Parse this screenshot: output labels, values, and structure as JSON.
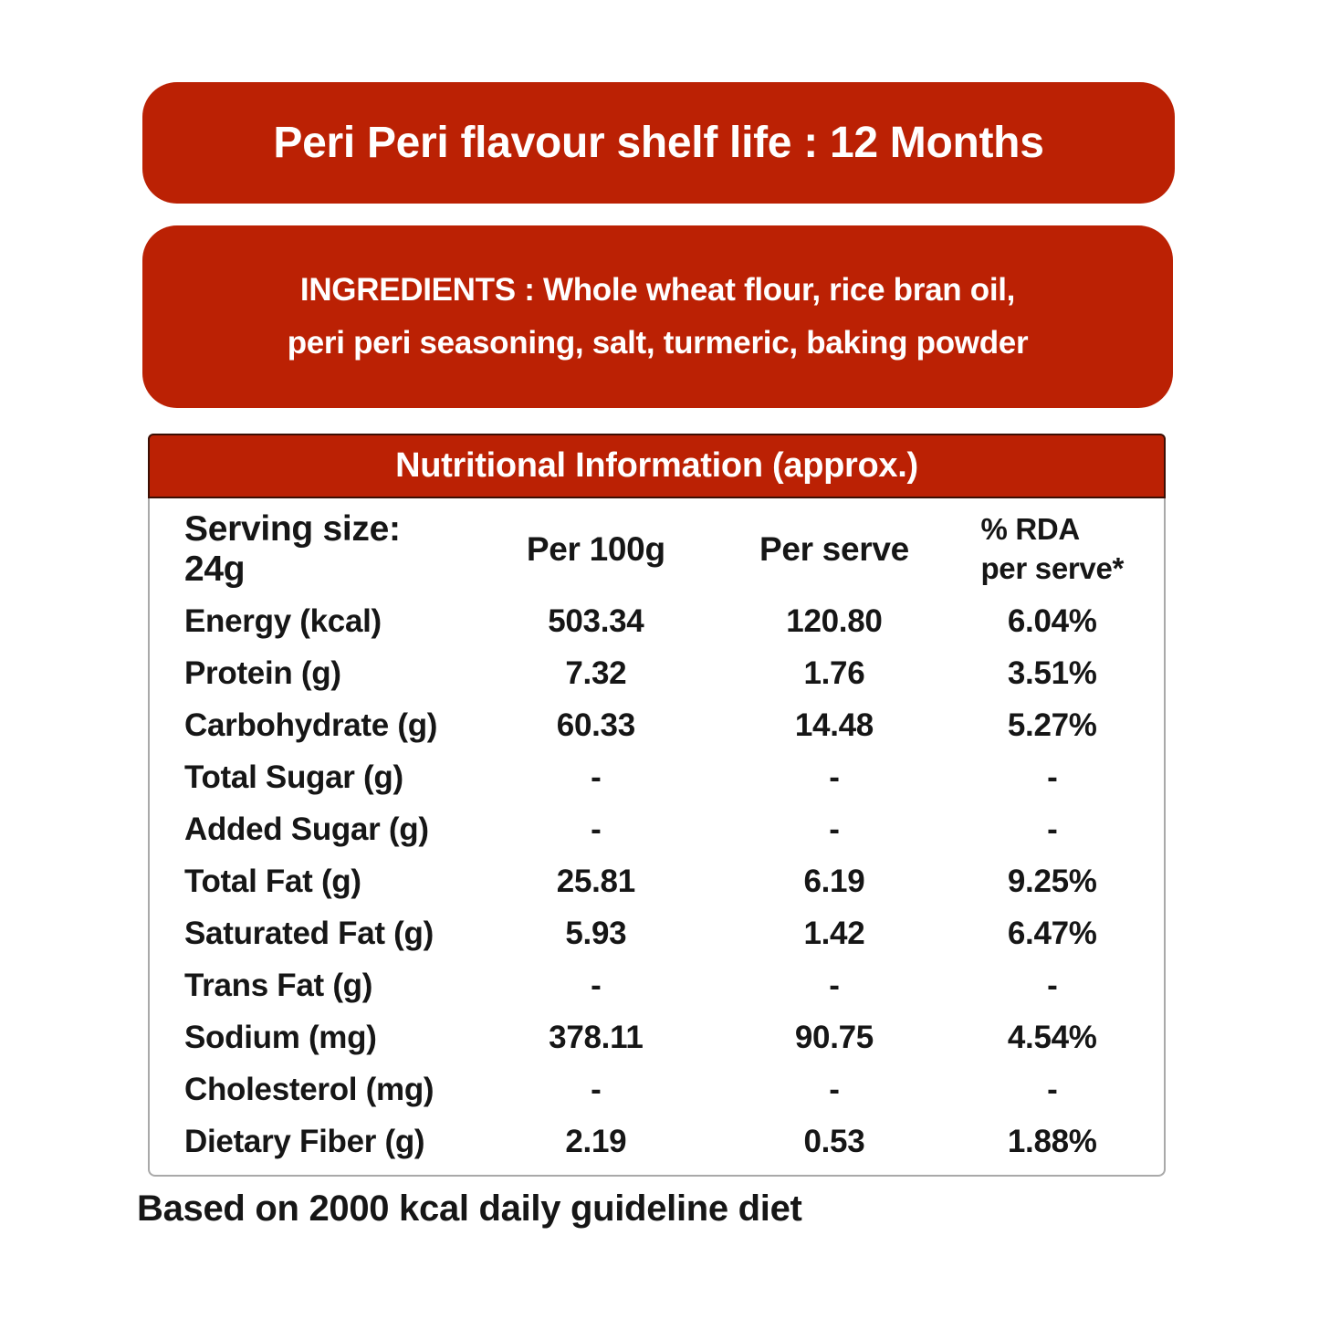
{
  "banner": {
    "text": "Peri Peri flavour shelf life : 12 Months"
  },
  "ingredients": {
    "text": "INGREDIENTS : Whole wheat flour, rice bran oil, peri peri seasoning, salt, turmeric, baking powder"
  },
  "nutrition": {
    "title": "Nutritional Information (approx.)",
    "header": {
      "serving": "Serving size: 24g",
      "per100g": "Per 100g",
      "perServe": "Per serve",
      "rda_line1": "% RDA",
      "rda_line2": "per serve*"
    },
    "rows": [
      {
        "label": "Energy (kcal)",
        "per100g": "503.34",
        "perServe": "120.80",
        "rda": "6.04%"
      },
      {
        "label": "Protein (g)",
        "per100g": "7.32",
        "perServe": "1.76",
        "rda": "3.51%"
      },
      {
        "label": "Carbohydrate (g)",
        "per100g": "60.33",
        "perServe": "14.48",
        "rda": "5.27%"
      },
      {
        "label": "Total Sugar (g)",
        "per100g": "-",
        "perServe": "-",
        "rda": "-"
      },
      {
        "label": "Added Sugar (g)",
        "per100g": "-",
        "perServe": "-",
        "rda": "-"
      },
      {
        "label": "Total Fat (g)",
        "per100g": "25.81",
        "perServe": "6.19",
        "rda": "9.25%"
      },
      {
        "label": "Saturated Fat (g)",
        "per100g": "5.93",
        "perServe": "1.42",
        "rda": "6.47%"
      },
      {
        "label": "Trans Fat (g)",
        "per100g": "-",
        "perServe": "-",
        "rda": "-"
      },
      {
        "label": "Sodium (mg)",
        "per100g": "378.11",
        "perServe": "90.75",
        "rda": "4.54%"
      },
      {
        "label": "Cholesterol (mg)",
        "per100g": "-",
        "perServe": "-",
        "rda": "-"
      },
      {
        "label": "Dietary Fiber (g)",
        "per100g": "2.19",
        "perServe": "0.53",
        "rda": "1.88%"
      }
    ]
  },
  "footer": {
    "text": "Based on 2000 kcal daily guideline diet"
  },
  "colors": {
    "red": "#bb2104",
    "text": "#161616",
    "table_border": "#a9a9a9",
    "header_border": "#3b0e03"
  }
}
